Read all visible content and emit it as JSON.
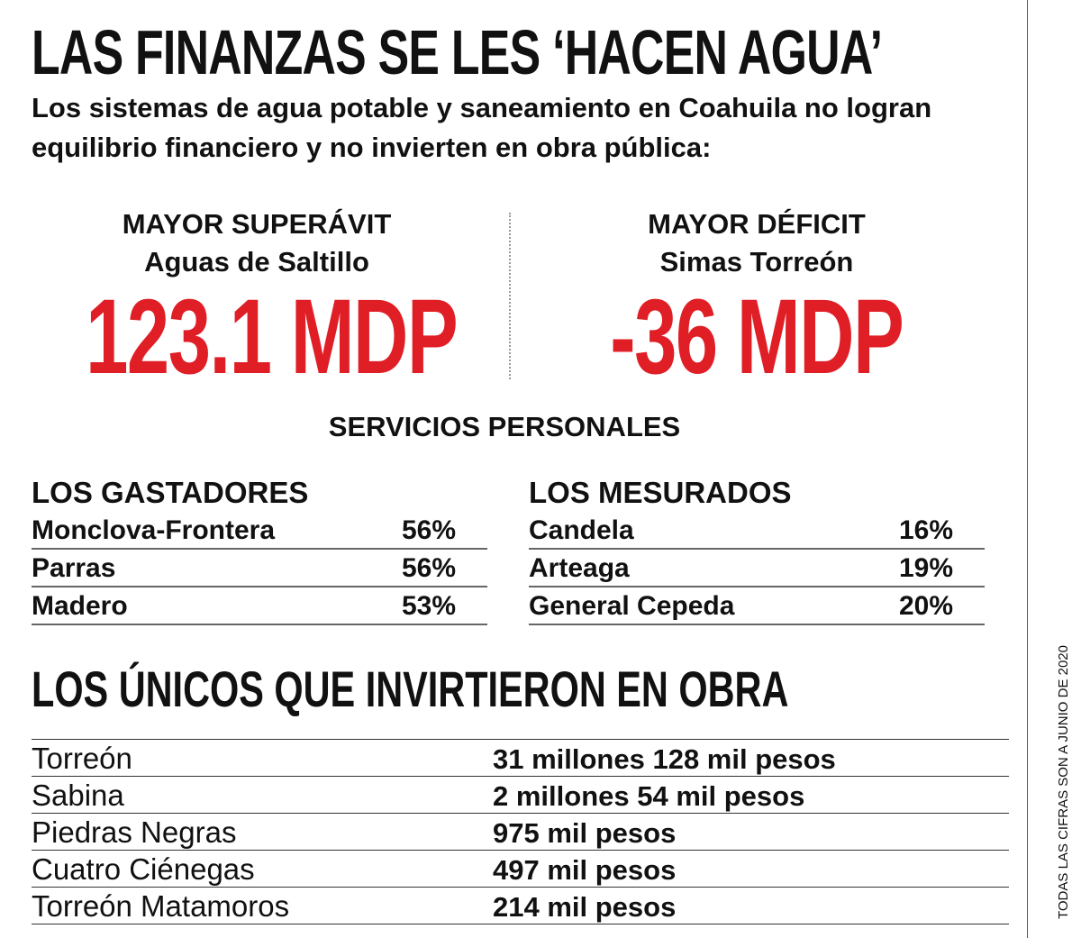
{
  "header": {
    "title": "LAS FINANZAS SE LES ‘HACEN AGUA’",
    "subtitle": "Los sistemas de agua potable y saneamiento en Coahuila no logran equilibrio financiero y no invierten en obra pública:"
  },
  "highlights": [
    {
      "label": "MAYOR SUPERÁVIT",
      "entity": "Aguas de Saltillo",
      "value": "123.1 MDP"
    },
    {
      "label": "MAYOR DÉFICIT",
      "entity": "Simas Torreón",
      "value": "-36 MDP"
    }
  ],
  "services": {
    "title": "SERVICIOS PERSONALES",
    "groups": [
      {
        "title": "LOS GASTADORES",
        "rows": [
          [
            "Monclova-Frontera",
            "56%"
          ],
          [
            "Parras",
            "56%"
          ],
          [
            "Madero",
            "53%"
          ]
        ]
      },
      {
        "title": "LOS MESURADOS",
        "rows": [
          [
            "Candela",
            "16%"
          ],
          [
            "Arteaga",
            "19%"
          ],
          [
            "General Cepeda",
            "20%"
          ]
        ]
      }
    ]
  },
  "investment": {
    "title": "LOS ÚNICOS QUE INVIRTIERON EN OBRA",
    "rows": [
      [
        "Torreón",
        "31 millones 128 mil pesos"
      ],
      [
        "Sabina",
        "2 millones 54 mil pesos"
      ],
      [
        "Piedras Negras",
        "975 mil pesos"
      ],
      [
        "Cuatro Ciénegas",
        "497 mil pesos"
      ],
      [
        "Torreón Matamoros",
        "214 mil pesos"
      ]
    ]
  },
  "note": "TODAS LAS CIFRAS SON A JUNIO DE 2020"
}
